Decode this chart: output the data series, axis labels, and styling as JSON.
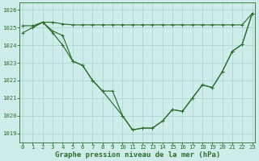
{
  "bg_color": "#ceecea",
  "grid_color": "#a8d5d0",
  "line_color": "#2d6e2d",
  "ylim": [
    1018.5,
    1026.4
  ],
  "xlim": [
    -0.3,
    23.3
  ],
  "yticks": [
    1019,
    1020,
    1021,
    1022,
    1023,
    1024,
    1025,
    1026
  ],
  "xticks": [
    0,
    1,
    2,
    3,
    4,
    5,
    6,
    7,
    8,
    9,
    10,
    11,
    12,
    13,
    14,
    15,
    16,
    17,
    18,
    19,
    20,
    21,
    22,
    23
  ],
  "series1_x": [
    0,
    1,
    2,
    3,
    4,
    5,
    6,
    7,
    8,
    9,
    10,
    11,
    12,
    13,
    14,
    15,
    16,
    17,
    18,
    19,
    20,
    21,
    22,
    23
  ],
  "series1_y": [
    1025.1,
    1025.1,
    1025.3,
    1025.3,
    1025.2,
    1025.15,
    1025.15,
    1025.15,
    1025.15,
    1025.15,
    1025.15,
    1025.15,
    1025.15,
    1025.15,
    1025.15,
    1025.15,
    1025.15,
    1025.15,
    1025.15,
    1025.15,
    1025.15,
    1025.15,
    1025.15,
    1025.8
  ],
  "series2_x": [
    0,
    1,
    2,
    3,
    4,
    5,
    6,
    7,
    8,
    9,
    10,
    11,
    12,
    13,
    14,
    15,
    16,
    17,
    18,
    19,
    20,
    21,
    22,
    23
  ],
  "series2_y": [
    1024.7,
    1025.0,
    1025.3,
    1024.7,
    1024.0,
    1023.1,
    1022.85,
    1022.0,
    1021.4,
    1021.4,
    1020.0,
    1019.2,
    1019.3,
    1019.3,
    1019.7,
    1020.35,
    1020.25,
    1021.0,
    1021.75,
    1021.6,
    1022.5,
    1023.65,
    1024.05,
    1025.8
  ],
  "series3_x": [
    1,
    2,
    3,
    4,
    5,
    6,
    7,
    8,
    10,
    11,
    12,
    13,
    14,
    15,
    16,
    17,
    18,
    19,
    20,
    21,
    22,
    23
  ],
  "series3_y": [
    1025.0,
    1025.3,
    1024.8,
    1024.55,
    1023.1,
    1022.85,
    1022.0,
    1021.4,
    1020.0,
    1019.2,
    1019.3,
    1019.3,
    1019.7,
    1020.35,
    1020.25,
    1021.0,
    1021.75,
    1021.6,
    1022.5,
    1023.65,
    1024.05,
    1025.8
  ],
  "xlabel": "Graphe pression niveau de la mer (hPa)",
  "xlabel_fontsize": 6.5,
  "tick_fontsize": 5.2,
  "marker": "+",
  "marker_size": 3.5,
  "linewidth": 0.85
}
